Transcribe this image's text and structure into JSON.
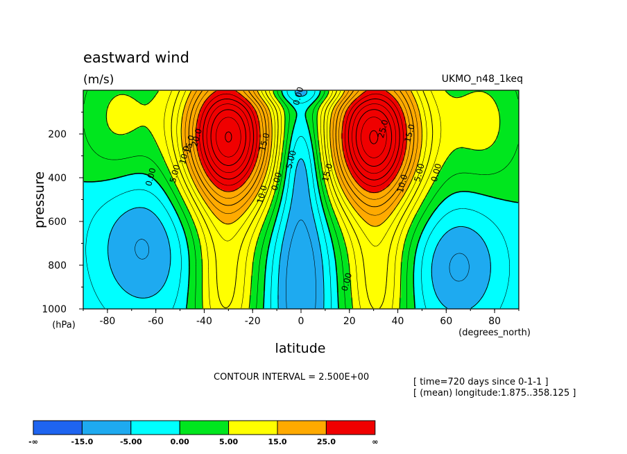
{
  "chart_data": {
    "type": "heatmap",
    "title": "eastward wind",
    "units": "(m/s)",
    "dataset": "UKMO_n48_1keq",
    "xlabel": "latitude",
    "x_unit": "(degrees_north)",
    "ylabel": "pressure",
    "y_unit": "(hPa)",
    "xlim": [
      -90,
      90
    ],
    "ylim": [
      1000,
      0
    ],
    "x_ticks": [
      "-80",
      "-60",
      "-40",
      "-20",
      "0",
      "20",
      "40",
      "60",
      "80"
    ],
    "y_ticks": [
      "200",
      "400",
      "600",
      "800",
      "1000"
    ],
    "contour_interval": "CONTOUR INTERVAL = 2.500E+00",
    "info": [
      "[ time=720 days since 0-1-1 ]",
      "[ (mean) longitude:1.875..358.125 ]"
    ],
    "colorbar": {
      "labels": [
        "-∞",
        "-15.0",
        "-5.00",
        "0.00",
        "5.00",
        "15.0",
        "25.0",
        "∞"
      ],
      "colors": [
        "#1e64f0",
        "#1eaaf0",
        "#00ffff",
        "#00e61e",
        "#ffff00",
        "#ffaa00",
        "#f00000"
      ]
    },
    "contour_labels": [
      {
        "text": "0.00",
        "lat": -61,
        "p": 400
      },
      {
        "text": "5.00",
        "lat": -51,
        "p": 385
      },
      {
        "text": "10.0",
        "lat": -47,
        "p": 300
      },
      {
        "text": "15.0",
        "lat": -45,
        "p": 250
      },
      {
        "text": "20.0",
        "lat": -42,
        "p": 220
      },
      {
        "text": "15.0",
        "lat": -14,
        "p": 240
      },
      {
        "text": "10.0",
        "lat": -15,
        "p": 480
      },
      {
        "text": "0.00",
        "lat": -9,
        "p": 420
      },
      {
        "text": "5.00",
        "lat": -3,
        "p": 320
      },
      {
        "text": "15.0",
        "lat": 12,
        "p": 380
      },
      {
        "text": "0.00",
        "lat": 20,
        "p": 880
      },
      {
        "text": "25.0",
        "lat": 35,
        "p": 180
      },
      {
        "text": "15.0",
        "lat": 46,
        "p": 200
      },
      {
        "text": "10.0",
        "lat": 43,
        "p": 430
      },
      {
        "text": "5.00",
        "lat": 50,
        "p": 380
      },
      {
        "text": "0.00",
        "lat": 57,
        "p": 380
      },
      {
        "text": "0.00",
        "lat": 0,
        "p": 30
      }
    ],
    "fields": {
      "jets": [
        {
          "lat": -30,
          "p": 210,
          "peak": 40,
          "w_lat": 14,
          "w_p": 240
        },
        {
          "lat": 30,
          "p": 210,
          "peak": 40,
          "w_lat": 14,
          "w_p": 240
        }
      ],
      "min_easterly_equator": -10,
      "min_easterly_polar": -8
    }
  }
}
